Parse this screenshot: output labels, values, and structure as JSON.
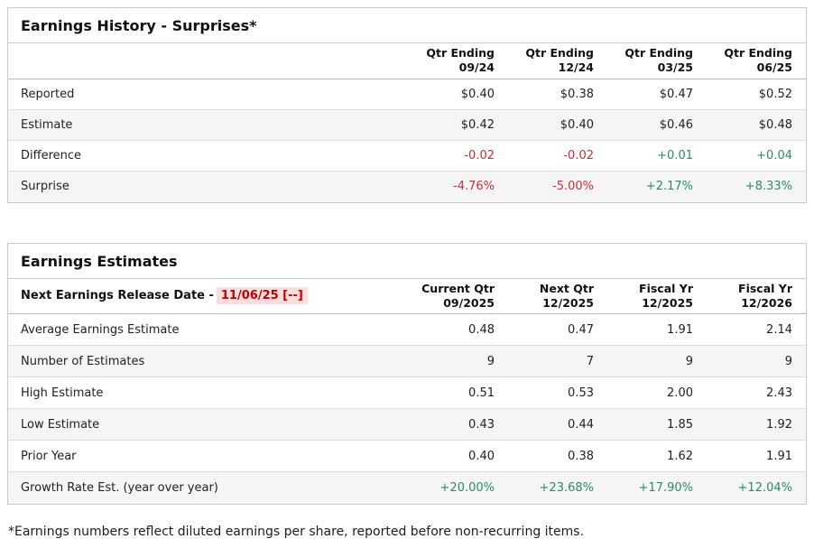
{
  "colors": {
    "negative_text": "#c5303b",
    "positive_text": "#2a8c64",
    "release_date_text": "#c00000",
    "release_date_highlight": "#fcdede",
    "row_stripe": "#f5f5f5",
    "table_border": "#c9c9c9"
  },
  "earnings_history": {
    "title": "Earnings History - Surprises*",
    "columns": [
      {
        "line1": "Qtr Ending",
        "line2": "09/24"
      },
      {
        "line1": "Qtr Ending",
        "line2": "12/24"
      },
      {
        "line1": "Qtr Ending",
        "line2": "03/25"
      },
      {
        "line1": "Qtr Ending",
        "line2": "06/25"
      }
    ],
    "rows": [
      {
        "label": "Reported",
        "values": [
          "$0.40",
          "$0.38",
          "$0.47",
          "$0.52"
        ],
        "value_colors": [
          "default",
          "default",
          "default",
          "default"
        ]
      },
      {
        "label": "Estimate",
        "values": [
          "$0.42",
          "$0.40",
          "$0.46",
          "$0.48"
        ],
        "value_colors": [
          "default",
          "default",
          "default",
          "default"
        ]
      },
      {
        "label": "Difference",
        "values": [
          "-0.02",
          "-0.02",
          "+0.01",
          "+0.04"
        ],
        "value_colors": [
          "negative",
          "negative",
          "positive",
          "positive"
        ]
      },
      {
        "label": "Surprise",
        "values": [
          "-4.76%",
          "-5.00%",
          "+2.17%",
          "+8.33%"
        ],
        "value_colors": [
          "negative",
          "negative",
          "positive",
          "positive"
        ]
      }
    ]
  },
  "earnings_estimates": {
    "title": "Earnings Estimates",
    "release_label": "Next Earnings Release Date -",
    "release_date": "11/06/25 [--]",
    "columns": [
      {
        "line1": "Current Qtr",
        "line2": "09/2025"
      },
      {
        "line1": "Next Qtr",
        "line2": "12/2025"
      },
      {
        "line1": "Fiscal Yr",
        "line2": "12/2025"
      },
      {
        "line1": "Fiscal Yr",
        "line2": "12/2026"
      }
    ],
    "rows": [
      {
        "label": "Average Earnings Estimate",
        "values": [
          "0.48",
          "0.47",
          "1.91",
          "2.14"
        ],
        "value_colors": [
          "default",
          "default",
          "default",
          "default"
        ]
      },
      {
        "label": "Number of Estimates",
        "values": [
          "9",
          "7",
          "9",
          "9"
        ],
        "value_colors": [
          "default",
          "default",
          "default",
          "default"
        ]
      },
      {
        "label": "High Estimate",
        "values": [
          "0.51",
          "0.53",
          "2.00",
          "2.43"
        ],
        "value_colors": [
          "default",
          "default",
          "default",
          "default"
        ]
      },
      {
        "label": "Low Estimate",
        "values": [
          "0.43",
          "0.44",
          "1.85",
          "1.92"
        ],
        "value_colors": [
          "default",
          "default",
          "default",
          "default"
        ]
      },
      {
        "label": "Prior Year",
        "values": [
          "0.40",
          "0.38",
          "1.62",
          "1.91"
        ],
        "value_colors": [
          "default",
          "default",
          "default",
          "default"
        ]
      },
      {
        "label": "Growth Rate Est. (year over year)",
        "values": [
          "+20.00%",
          "+23.68%",
          "+17.90%",
          "+12.04%"
        ],
        "value_colors": [
          "positive",
          "positive",
          "positive",
          "positive"
        ]
      }
    ]
  },
  "footnote": "*Earnings numbers reflect diluted earnings per share, reported before non-recurring items."
}
